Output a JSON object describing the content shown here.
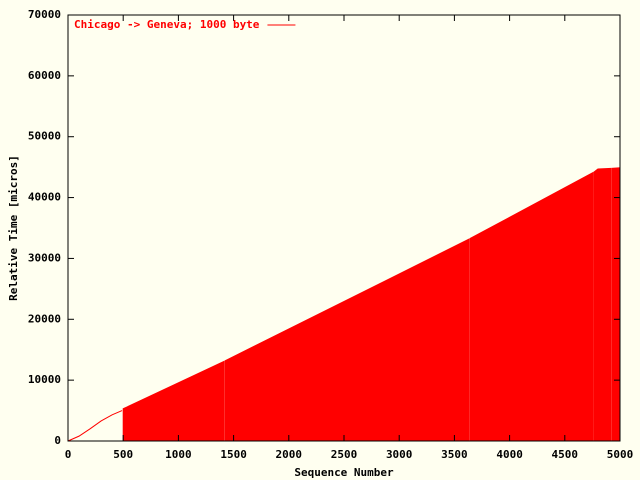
{
  "chart_data": {
    "type": "line",
    "xlabel": "Sequence Number",
    "ylabel": "Relative Time [micros]",
    "xlim": [
      0,
      5000
    ],
    "xticks": [
      0,
      500,
      1000,
      1500,
      2000,
      2500,
      3000,
      3500,
      4000,
      4500,
      5000
    ],
    "ylim": [
      0,
      70000
    ],
    "yticks": [
      0,
      10000,
      20000,
      30000,
      40000,
      50000,
      60000,
      70000
    ],
    "legend": "top-left",
    "series": [
      {
        "name": "Chicago -> Geneva; 1000 byte",
        "color": "#ff0000",
        "style": "line",
        "x": [
          0,
          100,
          200,
          300,
          400,
          490
        ],
        "values": [
          0,
          800,
          2000,
          3300,
          4300,
          5000
        ]
      },
      {
        "color": "#ff0000",
        "style": "area",
        "x": [
          500,
          1415,
          1420,
          1425,
          3635,
          3640,
          3645,
          4755,
          4760,
          4765,
          4800,
          4915,
          4920,
          4925,
          5000
        ],
        "values": [
          5300,
          13100,
          null,
          13200,
          33200,
          null,
          33300,
          44100,
          null,
          44200,
          44700,
          44800,
          null,
          44800,
          44900
        ]
      }
    ]
  }
}
